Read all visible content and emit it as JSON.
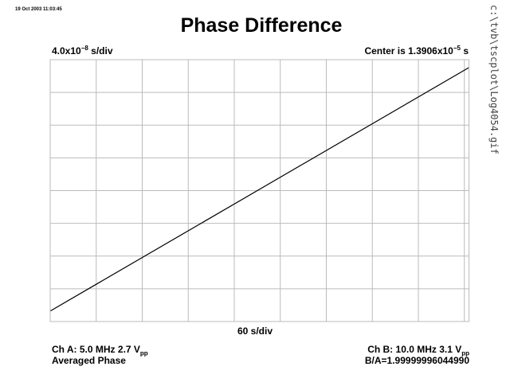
{
  "timestamp": "19 Oct 2003 11:03:45",
  "file_path": "c:\\tvb\\tscplot\\Log4054.gif",
  "colors": {
    "background": "#ffffff",
    "grid": "#bbbbbb",
    "trace": "#000000"
  },
  "header": {
    "timebase_mantissa": "4.0x10",
    "timebase_exp": "−8",
    "timebase_unit": " s/div",
    "center_prefix": "Center is 1.3906x10",
    "center_exp": "−5",
    "center_unit": " s"
  },
  "footer": {
    "ch_a_prefix": "Ch A: 5.0 MHz 2.7 V",
    "ch_a_sub": "pp",
    "mode": "Averaged Phase",
    "ch_b_prefix": "Ch B: 10.0 MHz 3.1 V",
    "ch_b_sub": "pp",
    "ratio": "B/A=1.99999996044990"
  },
  "chart_data": {
    "type": "line",
    "title": "Phase Difference",
    "xlabel": "60 s/div",
    "ylabel": "",
    "x_divisions": 9.1,
    "y_divisions": 8,
    "grid": true,
    "xlim": [
      0,
      9.1
    ],
    "ylim": [
      0,
      8
    ],
    "series": [
      {
        "x": [
          0,
          9.1
        ],
        "y": [
          0.32,
          7.76
        ]
      }
    ]
  }
}
